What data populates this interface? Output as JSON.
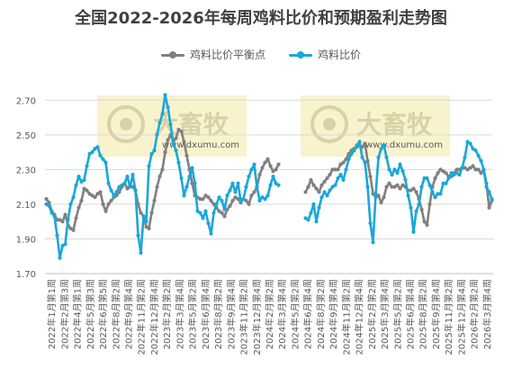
{
  "chart_data": {
    "type": "line",
    "title": "全国2022-2026年每周鸡料比价和预期盈利走势图",
    "ylim": [
      1.7,
      2.8
    ],
    "yticks": [
      "1.70",
      "1.90",
      "2.10",
      "2.30",
      "2.50",
      "2.70"
    ],
    "grid": true,
    "legend_position": "top",
    "watermark": {
      "brand": "大畜牧",
      "url": "www.dxumu.com"
    },
    "x_labels": [
      "2022年1月第1周",
      "2022年2月第3周",
      "2022年4月第1周",
      "2022年5月第3周",
      "2022年6月第5周",
      "2022年8月第2周",
      "2022年9月第4周",
      "2022年11月第2周",
      "2022年12月第4周",
      "2023年2月第2周",
      "2023年3月第4周",
      "2023年5月第2周",
      "2023年6月第4周",
      "2023年8月第2周",
      "2023年9月第4周",
      "2023年11月第2周",
      "2023年12月第4周",
      "2024年2月第2周",
      "2024年3月第4周",
      "2024年5月第2周",
      "2024年6月第4周",
      "2024年8月第2周",
      "2024年9月第4周",
      "2024年11月第2周",
      "2024年12月第4周",
      "2025年2月第2周",
      "2025年3月第4周",
      "2025年5月第2周",
      "2025年6月第4周",
      "2025年8月第2周",
      "2025年9月第4周",
      "2025年11月第2周",
      "2025年12月第4周",
      "2026年2月第2周",
      "2026年3月第4周"
    ],
    "series": [
      {
        "name": "鸡料比价平衡点",
        "color": "#808080",
        "values": [
          2.13,
          2.11,
          2.06,
          2.04,
          2.01,
          2.01,
          2.0,
          2.04,
          1.98,
          1.96,
          1.95,
          2.02,
          2.08,
          2.12,
          2.19,
          2.18,
          2.16,
          2.15,
          2.14,
          2.16,
          2.17,
          2.1,
          2.06,
          2.1,
          2.12,
          2.14,
          2.15,
          2.17,
          2.2,
          2.22,
          2.19,
          2.21,
          2.2,
          2.18,
          2.1,
          2.05,
          2.03,
          1.97,
          1.96,
          2.05,
          2.12,
          2.2,
          2.26,
          2.3,
          2.4,
          2.47,
          2.5,
          2.46,
          2.48,
          2.53,
          2.52,
          2.46,
          2.38,
          2.3,
          2.22,
          2.15,
          2.14,
          2.13,
          2.13,
          2.15,
          2.14,
          2.12,
          2.1,
          2.08,
          2.06,
          2.05,
          2.03,
          2.07,
          2.09,
          2.12,
          2.14,
          2.13,
          2.11,
          2.13,
          2.12,
          2.1,
          2.15,
          2.17,
          2.2,
          2.27,
          2.31,
          2.34,
          2.36,
          2.32,
          2.29,
          2.3,
          2.33,
          null,
          null,
          null,
          null,
          null,
          null,
          null,
          null,
          null,
          2.17,
          2.2,
          2.24,
          2.21,
          2.19,
          2.17,
          2.21,
          2.23,
          2.25,
          2.27,
          2.3,
          2.3,
          2.3,
          2.33,
          2.34,
          2.36,
          2.39,
          2.41,
          2.42,
          2.43,
          2.44,
          2.43,
          2.45,
          2.35,
          2.26,
          2.16,
          2.14,
          2.15,
          2.11,
          2.14,
          2.2,
          2.22,
          2.2,
          2.2,
          2.21,
          2.19,
          2.21,
          2.2,
          2.18,
          2.18,
          2.19,
          2.17,
          2.13,
          2.07,
          2.0,
          1.98,
          2.1,
          2.2,
          2.25,
          2.28,
          2.3,
          2.29,
          2.28,
          2.26,
          2.26,
          2.28,
          2.3,
          2.3,
          2.31,
          2.31,
          2.3,
          2.31,
          2.32,
          2.3,
          2.3,
          2.28,
          2.3,
          2.22,
          2.08,
          2.12
        ]
      },
      {
        "name": "鸡料比价",
        "color": "#1aa7d8",
        "values": [
          2.1,
          2.09,
          2.05,
          2.03,
          1.92,
          1.79,
          1.86,
          1.87,
          2.01,
          2.1,
          2.14,
          2.21,
          2.26,
          2.23,
          2.24,
          2.32,
          2.39,
          2.4,
          2.42,
          2.43,
          2.38,
          2.36,
          2.34,
          2.22,
          2.18,
          2.15,
          2.17,
          2.2,
          2.21,
          2.22,
          2.26,
          2.2,
          2.27,
          2.18,
          1.92,
          1.82,
          2.03,
          2.0,
          2.32,
          2.39,
          2.41,
          2.5,
          2.57,
          2.62,
          2.73,
          2.66,
          2.56,
          2.45,
          2.41,
          2.34,
          2.25,
          2.15,
          2.2,
          2.26,
          2.31,
          2.22,
          2.06,
          2.05,
          2.02,
          2.06,
          1.99,
          1.93,
          2.05,
          2.1,
          2.14,
          2.12,
          2.07,
          2.15,
          2.18,
          2.22,
          2.17,
          2.22,
          2.12,
          2.13,
          2.2,
          2.26,
          2.3,
          2.33,
          2.2,
          2.12,
          2.14,
          2.13,
          2.15,
          2.21,
          2.26,
          2.22,
          2.21,
          null,
          null,
          null,
          null,
          null,
          null,
          null,
          null,
          null,
          2.02,
          2.01,
          2.05,
          2.1,
          2.0,
          2.08,
          2.14,
          2.17,
          2.15,
          2.18,
          2.2,
          2.21,
          2.25,
          2.27,
          2.24,
          2.3,
          2.36,
          2.39,
          2.41,
          2.44,
          2.46,
          2.37,
          2.34,
          2.2,
          1.99,
          1.88,
          2.16,
          2.37,
          2.42,
          2.44,
          2.37,
          2.3,
          2.27,
          2.3,
          2.28,
          2.33,
          2.29,
          2.24,
          2.15,
          2.08,
          1.94,
          2.06,
          2.1,
          2.2,
          2.25,
          2.25,
          2.21,
          2.17,
          2.14,
          2.16,
          2.16,
          2.22,
          2.22,
          2.25,
          2.28,
          2.27,
          2.28,
          2.27,
          2.31,
          2.37,
          2.46,
          2.45,
          2.42,
          2.41,
          2.38,
          2.35,
          2.3,
          2.2,
          2.17,
          2.13
        ]
      }
    ]
  }
}
